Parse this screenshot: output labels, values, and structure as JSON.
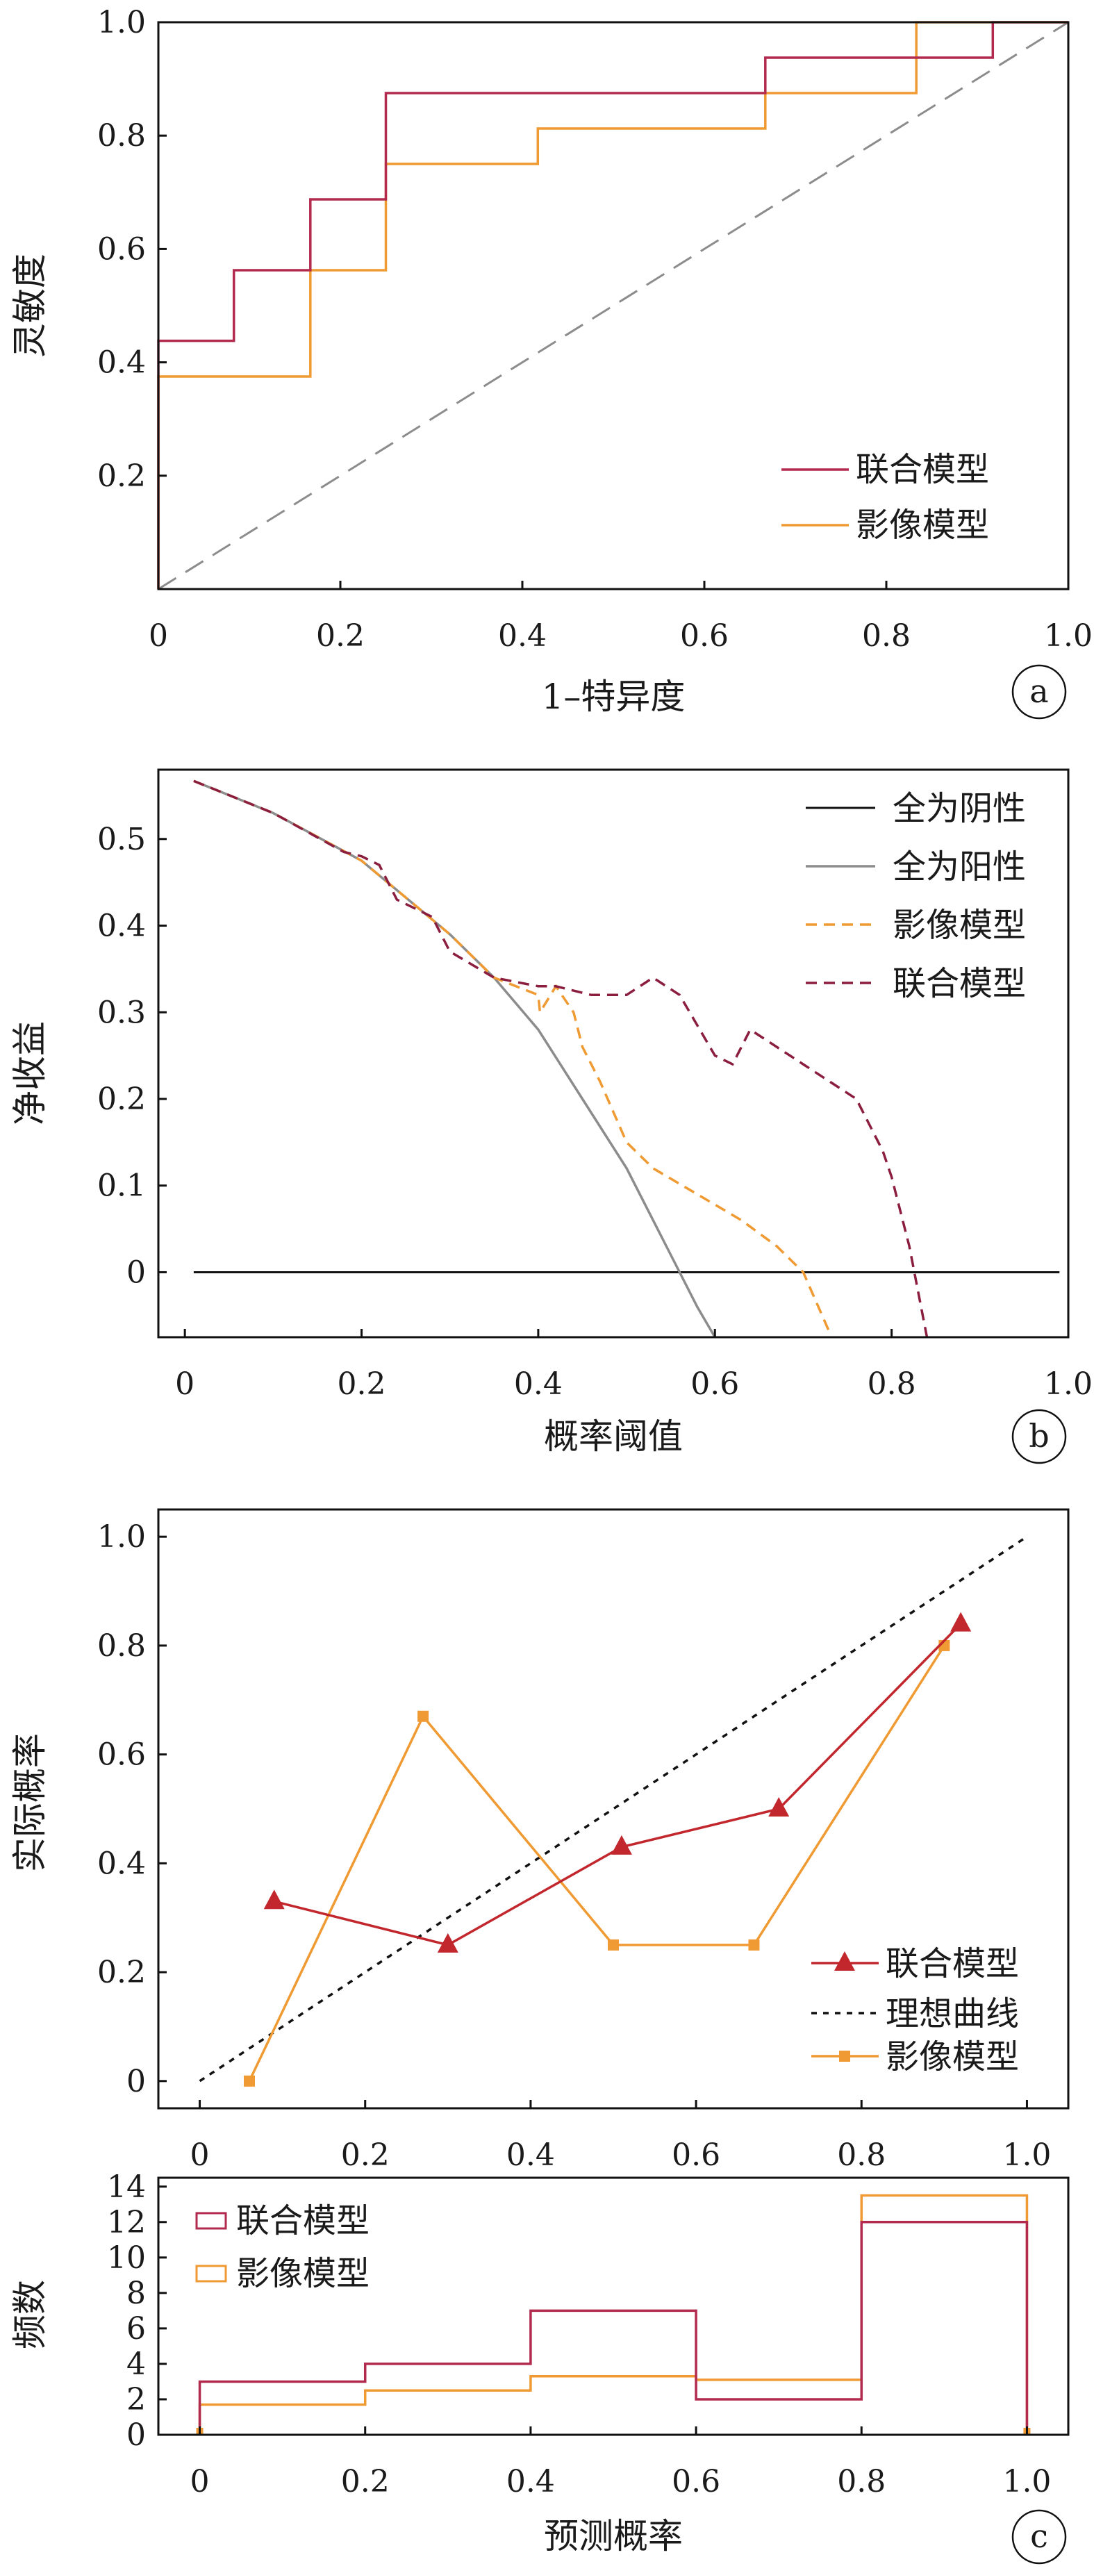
{
  "chart_data": [
    {
      "type": "line",
      "panel_label": "a",
      "xlabel": "1–特异度",
      "ylabel": "灵敏度",
      "xlim": [
        0,
        1
      ],
      "ylim": [
        0,
        1
      ],
      "xticks": [
        "0",
        "0.2",
        "0.4",
        "0.6",
        "0.8",
        "1.0"
      ],
      "yticks": [
        "0.2",
        "0.4",
        "0.6",
        "0.8",
        "1.0"
      ],
      "legend_position": "bottom-right",
      "colors": {
        "combined": "#b22a4e",
        "imaging": "#ef9a32",
        "diagonal": "#8c8c8c"
      },
      "series": [
        {
          "name": "联合模型",
          "x": [
            0,
            0,
            0.083,
            0.083,
            0.167,
            0.167,
            0.25,
            0.25,
            0.667,
            0.667,
            0.917,
            0.917,
            1.0
          ],
          "y": [
            0,
            0.438,
            0.438,
            0.5625,
            0.5625,
            0.6875,
            0.6875,
            0.875,
            0.875,
            0.9375,
            0.9375,
            1.0,
            1.0
          ]
        },
        {
          "name": "影像模型",
          "x": [
            0,
            0,
            0.167,
            0.167,
            0.25,
            0.25,
            0.417,
            0.417,
            0.667,
            0.667,
            0.833,
            0.833,
            1.0
          ],
          "y": [
            0,
            0.375,
            0.375,
            0.5625,
            0.5625,
            0.75,
            0.75,
            0.8125,
            0.8125,
            0.875,
            0.875,
            1.0,
            1.0
          ]
        }
      ]
    },
    {
      "type": "line",
      "panel_label": "b",
      "xlabel": "概率阈值",
      "ylabel": "净收益",
      "xlim": [
        -0.03,
        1.0
      ],
      "ylim": [
        -0.075,
        0.58
      ],
      "xticks": [
        "0",
        "0.2",
        "0.4",
        "0.6",
        "0.8",
        "1.0"
      ],
      "yticks": [
        "0",
        "0.1",
        "0.2",
        "0.3",
        "0.4",
        "0.5"
      ],
      "legend_position": "top-right",
      "colors": {
        "none": "#111111",
        "all": "#8c8c8c",
        "imaging": "#ef9a32",
        "combined": "#8b1e3f"
      },
      "series": [
        {
          "name": "全为阴性",
          "x": [
            0.01,
            0.99
          ],
          "y": [
            0,
            0
          ]
        },
        {
          "name": "全为阳性",
          "x": [
            0.01,
            0.1,
            0.2,
            0.3,
            0.35,
            0.4,
            0.45,
            0.5,
            0.55,
            0.58,
            0.6
          ],
          "y": [
            0.567,
            0.53,
            0.475,
            0.39,
            0.34,
            0.28,
            0.2,
            0.12,
            0.02,
            -0.04,
            -0.075
          ]
        },
        {
          "name": "影像模型",
          "x": [
            0.01,
            0.1,
            0.2,
            0.3,
            0.35,
            0.4,
            0.402,
            0.42,
            0.44,
            0.45,
            0.47,
            0.5,
            0.53,
            0.58,
            0.63,
            0.67,
            0.7,
            0.73
          ],
          "y": [
            0.567,
            0.53,
            0.475,
            0.39,
            0.34,
            0.32,
            0.3,
            0.33,
            0.3,
            0.26,
            0.22,
            0.15,
            0.12,
            0.09,
            0.06,
            0.03,
            0.0,
            -0.07
          ]
        },
        {
          "name": "联合模型",
          "x": [
            0.01,
            0.1,
            0.18,
            0.2,
            0.22,
            0.24,
            0.28,
            0.3,
            0.35,
            0.4,
            0.42,
            0.46,
            0.5,
            0.53,
            0.56,
            0.6,
            0.62,
            0.64,
            0.7,
            0.76,
            0.79,
            0.8,
            0.82,
            0.84
          ],
          "y": [
            0.567,
            0.53,
            0.485,
            0.48,
            0.47,
            0.43,
            0.41,
            0.37,
            0.34,
            0.33,
            0.33,
            0.32,
            0.32,
            0.34,
            0.32,
            0.25,
            0.24,
            0.28,
            0.24,
            0.2,
            0.14,
            0.11,
            0.03,
            -0.075
          ]
        }
      ]
    },
    {
      "type": "line",
      "panel_label": "c",
      "xlabel": "预测概率",
      "ylabel": "实际概率",
      "xlim": [
        -0.05,
        1.05
      ],
      "ylim": [
        -0.05,
        1.05
      ],
      "xticks": [
        "0",
        "0.2",
        "0.4",
        "0.6",
        "0.8",
        "1.0"
      ],
      "yticks": [
        "0",
        "0.2",
        "0.4",
        "0.6",
        "0.8",
        "1.0"
      ],
      "legend_position": "bottom-right",
      "colors": {
        "combined": "#c1272d",
        "ideal": "#111111",
        "imaging": "#ef9a32"
      },
      "series": [
        {
          "name": "联合模型",
          "marker": "triangle",
          "x": [
            0.09,
            0.3,
            0.51,
            0.7,
            0.92
          ],
          "y": [
            0.33,
            0.25,
            0.43,
            0.5,
            0.84
          ]
        },
        {
          "name": "理想曲线",
          "x": [
            0,
            1
          ],
          "y": [
            0,
            1
          ]
        },
        {
          "name": "影像模型",
          "marker": "square",
          "x": [
            0.06,
            0.27,
            0.5,
            0.67,
            0.9
          ],
          "y": [
            0.0,
            0.67,
            0.25,
            0.25,
            0.8
          ]
        }
      ]
    },
    {
      "type": "bar",
      "panel_label": "c",
      "xlabel": "预测概率",
      "ylabel": "频数",
      "xlim": [
        -0.05,
        1.05
      ],
      "ylim": [
        0,
        14.5
      ],
      "xticks": [
        "0",
        "0.2",
        "0.4",
        "0.6",
        "0.8",
        "1.0"
      ],
      "yticks": [
        "0",
        "2",
        "4",
        "6",
        "8",
        "10",
        "12",
        "14"
      ],
      "legend_position": "top-left",
      "bin_edges": [
        0,
        0.2,
        0.4,
        0.6,
        0.8,
        1.0
      ],
      "colors": {
        "combined": "#b22a4e",
        "imaging": "#ef9a32"
      },
      "series": [
        {
          "name": "联合模型",
          "values": [
            3,
            4,
            7,
            2,
            12
          ]
        },
        {
          "name": "影像模型",
          "values": [
            1.7,
            2.5,
            3.3,
            3.1,
            13.5
          ]
        }
      ]
    }
  ]
}
